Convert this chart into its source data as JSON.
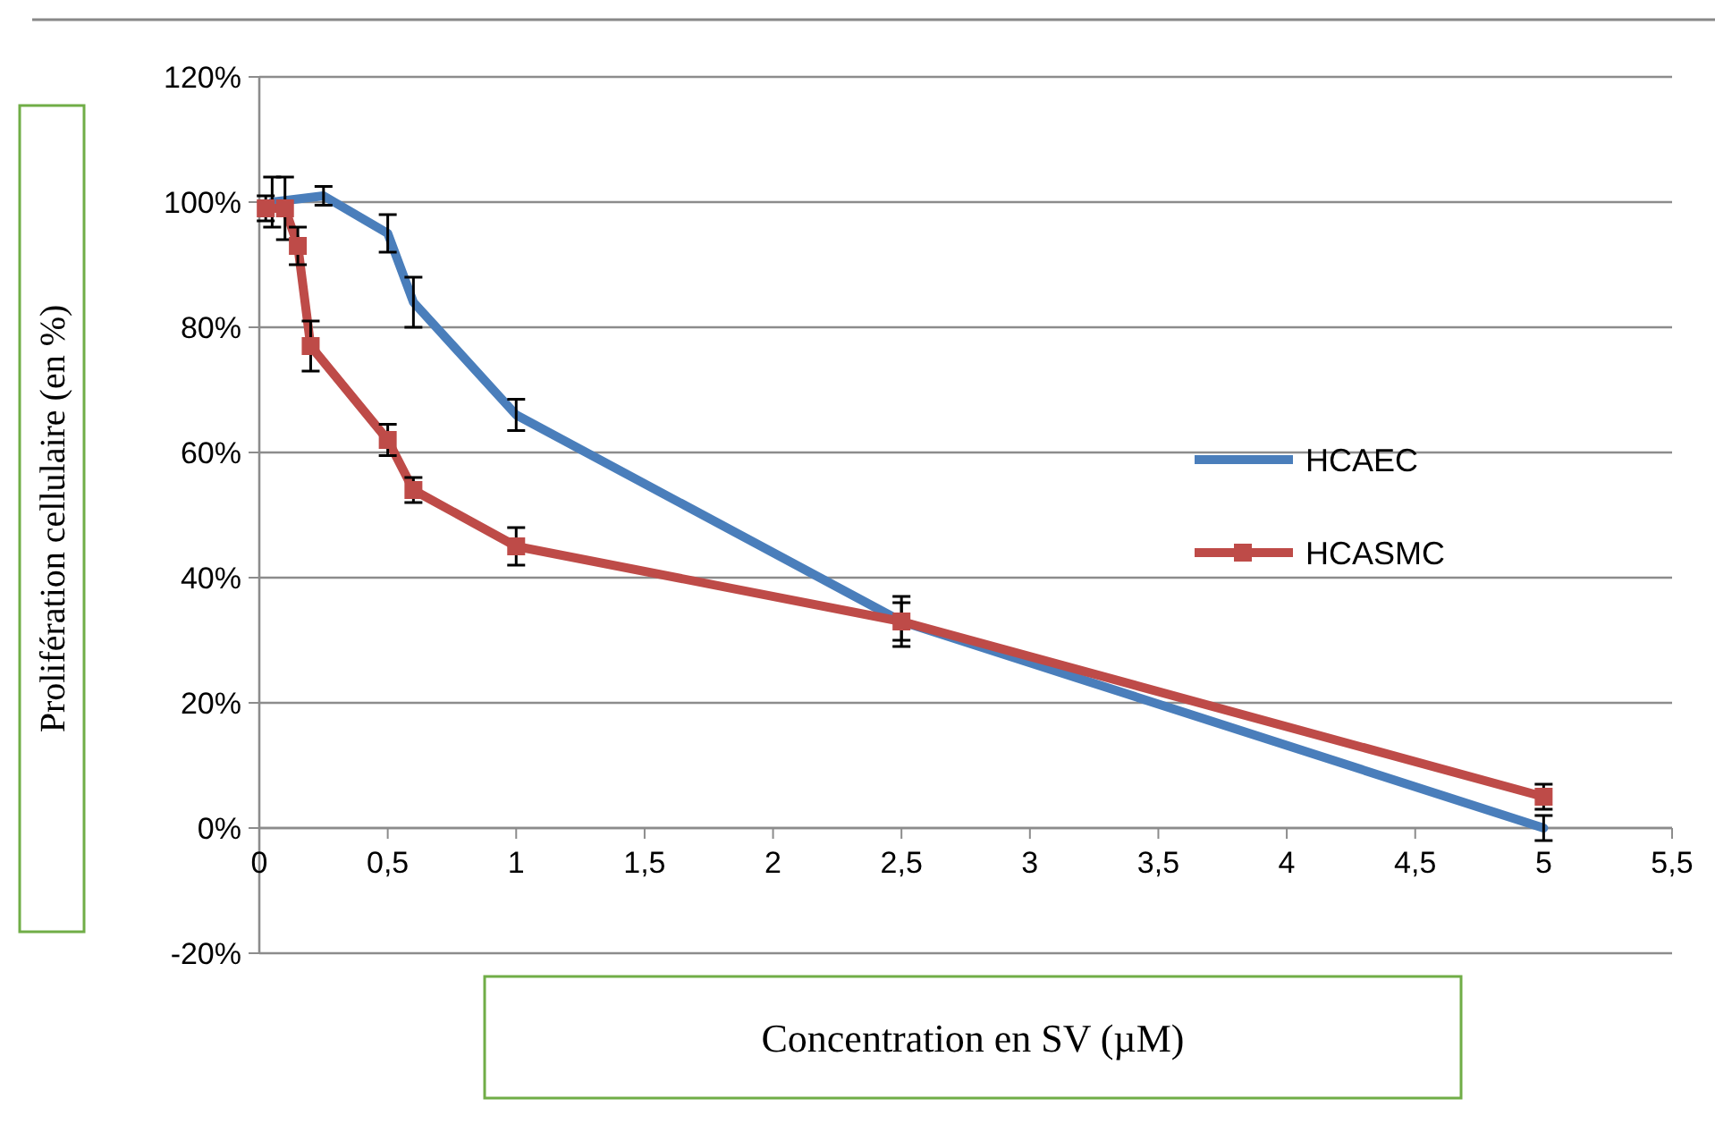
{
  "chart_data": {
    "type": "line",
    "xlabel": "Concentration en SV (µM)",
    "ylabel": "Prolifération cellulaire (en %)",
    "xlim": [
      0,
      5.5
    ],
    "xticks": [
      0,
      {
        "value": 0.5,
        "label": "0,5"
      },
      1,
      {
        "value": 1.5,
        "label": "1,5"
      },
      2,
      {
        "value": 2.5,
        "label": "2,5"
      },
      3,
      {
        "value": 3.5,
        "label": "3,5"
      },
      4,
      {
        "value": 4.5,
        "label": "4,5"
      },
      5,
      {
        "value": 5.5,
        "label": "5,5"
      }
    ],
    "ylim": [
      -20,
      120
    ],
    "yticks": [
      {
        "value": -20,
        "label": "-20%"
      },
      {
        "value": 0,
        "label": "0%"
      },
      {
        "value": 20,
        "label": "20%"
      },
      {
        "value": 40,
        "label": "40%"
      },
      {
        "value": 60,
        "label": "60%"
      },
      {
        "value": 80,
        "label": "80%"
      },
      {
        "value": 100,
        "label": "100%"
      },
      {
        "value": 120,
        "label": "120%"
      }
    ],
    "grid": "y",
    "legend": "right",
    "line_style": "solid",
    "series": [
      {
        "name": "HCAEC",
        "color": "#4a7ebb",
        "marker": "none",
        "x": [
          0.05,
          0.25,
          0.5,
          0.6,
          1,
          2.5,
          5
        ],
        "values": [
          100,
          101,
          95,
          84,
          66,
          33,
          0
        ],
        "errors": [
          4,
          1.5,
          3,
          4,
          2.5,
          4,
          2
        ]
      },
      {
        "name": "HCASMC",
        "color": "#be4b48",
        "marker": "square",
        "x": [
          0.025,
          0.1,
          0.15,
          0.2,
          0.5,
          0.6,
          1,
          2.5,
          5
        ],
        "values": [
          99,
          99,
          93,
          77,
          62,
          54,
          45,
          33,
          5
        ],
        "errors": [
          2,
          5,
          3,
          4,
          2.5,
          2,
          3,
          3,
          2
        ]
      }
    ]
  }
}
